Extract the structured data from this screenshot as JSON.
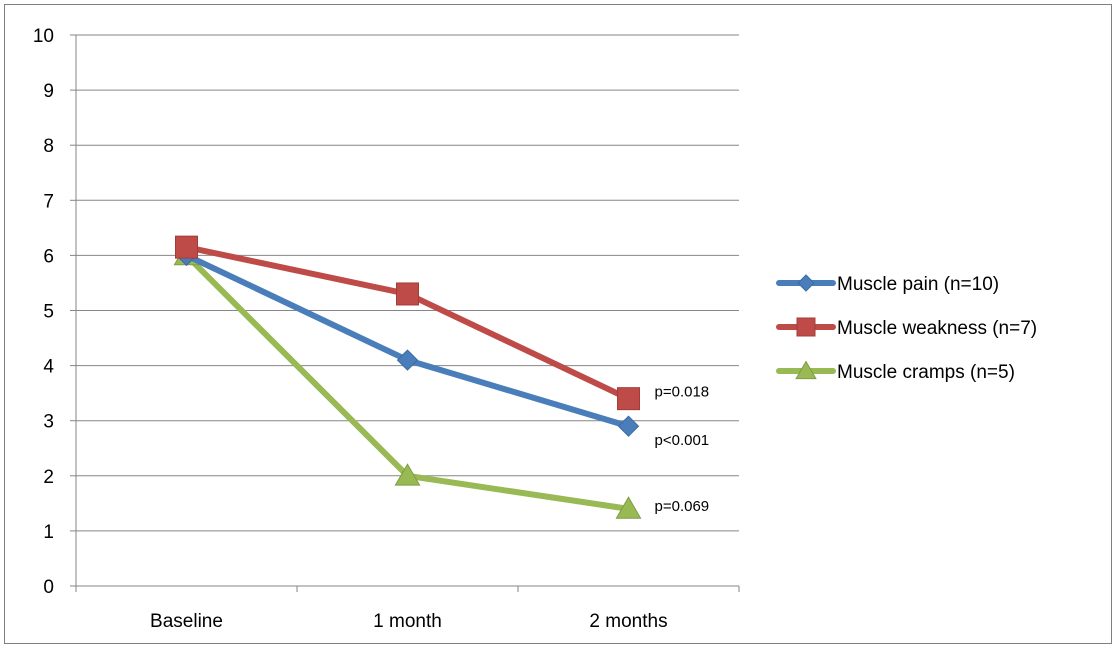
{
  "chart_data": {
    "type": "line",
    "title": "",
    "xlabel": "",
    "ylabel": "",
    "categories": [
      "Baseline",
      "1 month",
      "2 months"
    ],
    "ylim": [
      0,
      10
    ],
    "yticks": [
      0,
      1,
      2,
      3,
      4,
      5,
      6,
      7,
      8,
      9,
      10
    ],
    "grid": "horizontal",
    "legend_position": "right",
    "series": [
      {
        "name": "Muscle pain (n=10)",
        "values": [
          6.0,
          4.1,
          2.9
        ],
        "color": "#4a7ebb",
        "marker": "diamond"
      },
      {
        "name": "Muscle weakness (n=7)",
        "values": [
          6.15,
          5.3,
          3.4
        ],
        "color": "#be4b48",
        "marker": "square"
      },
      {
        "name": "Muscle cramps (n=5)",
        "values": [
          6.0,
          2.0,
          1.4
        ],
        "color": "#98b954",
        "marker": "triangle"
      }
    ],
    "annotations": [
      {
        "text": "p=0.018",
        "series": 1,
        "category": "2 months"
      },
      {
        "text": "p<0.001",
        "series": 0,
        "category": "2 months"
      },
      {
        "text": "p=0.069",
        "series": 2,
        "category": "2 months"
      }
    ]
  }
}
